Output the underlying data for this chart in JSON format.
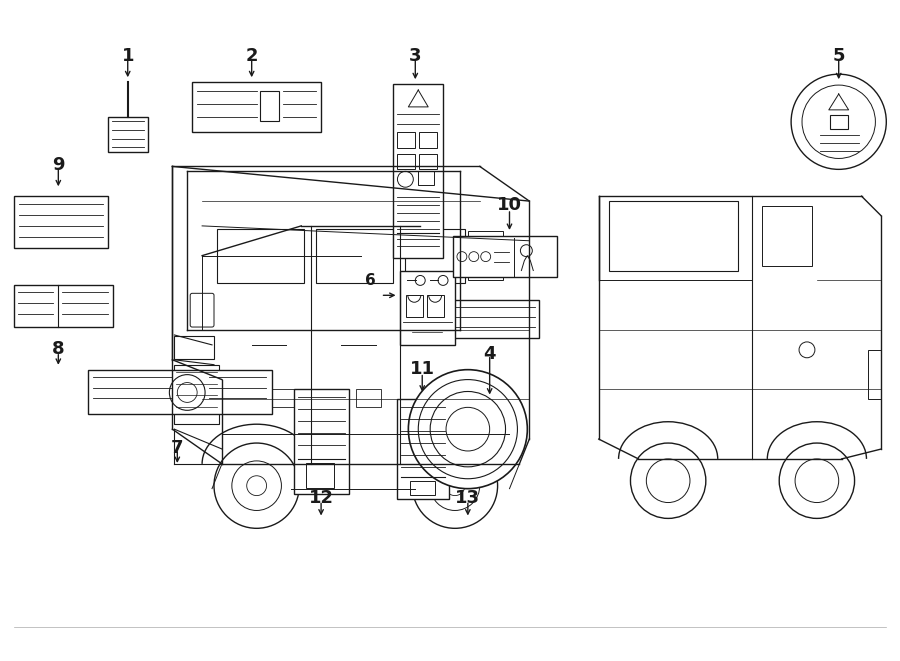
{
  "bg_color": "#ffffff",
  "lc": "#1a1a1a",
  "fig_width": 9.0,
  "fig_height": 6.61,
  "dpi": 100,
  "border_lw": 0.5,
  "truck_lw": 1.0
}
